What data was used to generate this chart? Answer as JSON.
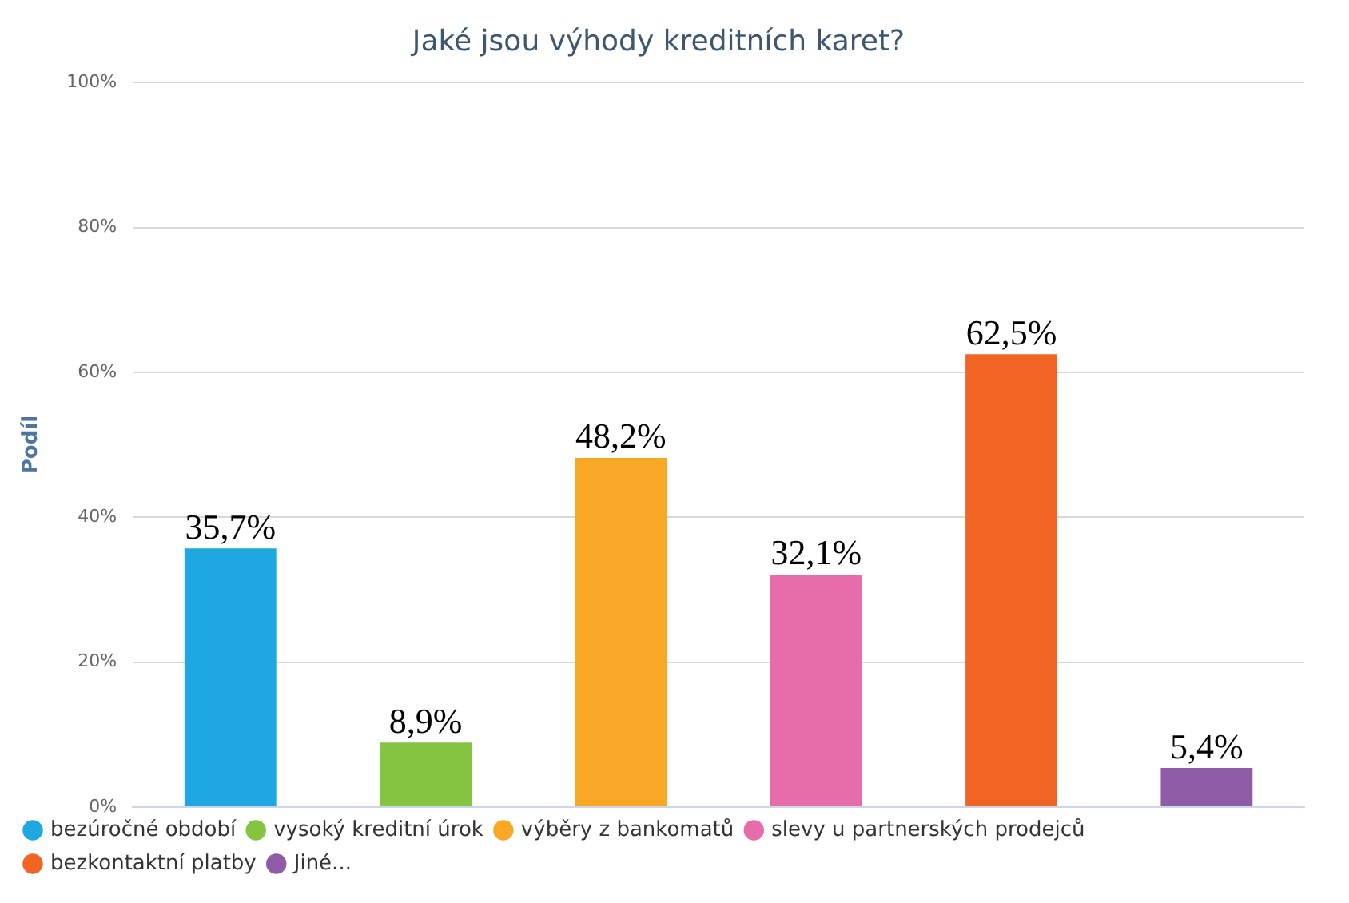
{
  "chart_data": {
    "type": "bar",
    "title": "Jaké jsou výhody kreditních karet?",
    "ylabel": "Podíl",
    "categories": [
      null,
      null,
      null,
      null,
      null,
      null
    ],
    "series": [
      {
        "name": "bezúročné období",
        "color": "#1ea7e1",
        "values": [
          35.7,
          null,
          null,
          null,
          null,
          null
        ],
        "value_labels": [
          "35,7%",
          null,
          null,
          null,
          null,
          null
        ]
      },
      {
        "name": "vysoký kreditní úrok",
        "color": "#85c441",
        "values": [
          null,
          8.9,
          null,
          null,
          null,
          null
        ],
        "value_labels": [
          null,
          "8,9%",
          null,
          null,
          null,
          null
        ]
      },
      {
        "name": "výběry z bankomatů",
        "color": "#f9a825",
        "values": [
          null,
          null,
          48.2,
          null,
          null,
          null
        ],
        "value_labels": [
          null,
          null,
          "48,2%",
          null,
          null,
          null
        ]
      },
      {
        "name": "slevy u partnerských prodejců",
        "color": "#e66caa",
        "values": [
          null,
          null,
          null,
          32.1,
          null,
          null
        ],
        "value_labels": [
          null,
          null,
          null,
          "32,1%",
          null,
          null
        ]
      },
      {
        "name": "bezkontaktní platby",
        "color": "#f06424",
        "values": [
          null,
          null,
          null,
          null,
          62.5,
          null
        ],
        "value_labels": [
          null,
          null,
          null,
          null,
          "62,5%",
          null
        ]
      },
      {
        "name": "Jiné...",
        "color": "#8e5ba6",
        "values": [
          null,
          null,
          null,
          null,
          null,
          5.4
        ],
        "value_labels": [
          null,
          null,
          null,
          null,
          null,
          "5,4%"
        ]
      }
    ],
    "ylim": [
      0,
      100
    ],
    "yticks": [
      {
        "value": 0,
        "label": "0%"
      },
      {
        "value": 20,
        "label": "20%"
      },
      {
        "value": 40,
        "label": "40%"
      },
      {
        "value": 60,
        "label": "60%"
      },
      {
        "value": 80,
        "label": "80%"
      },
      {
        "value": 100,
        "label": "100%"
      }
    ],
    "grid": "y",
    "legend": "bottom",
    "tick_labels": "y"
  }
}
